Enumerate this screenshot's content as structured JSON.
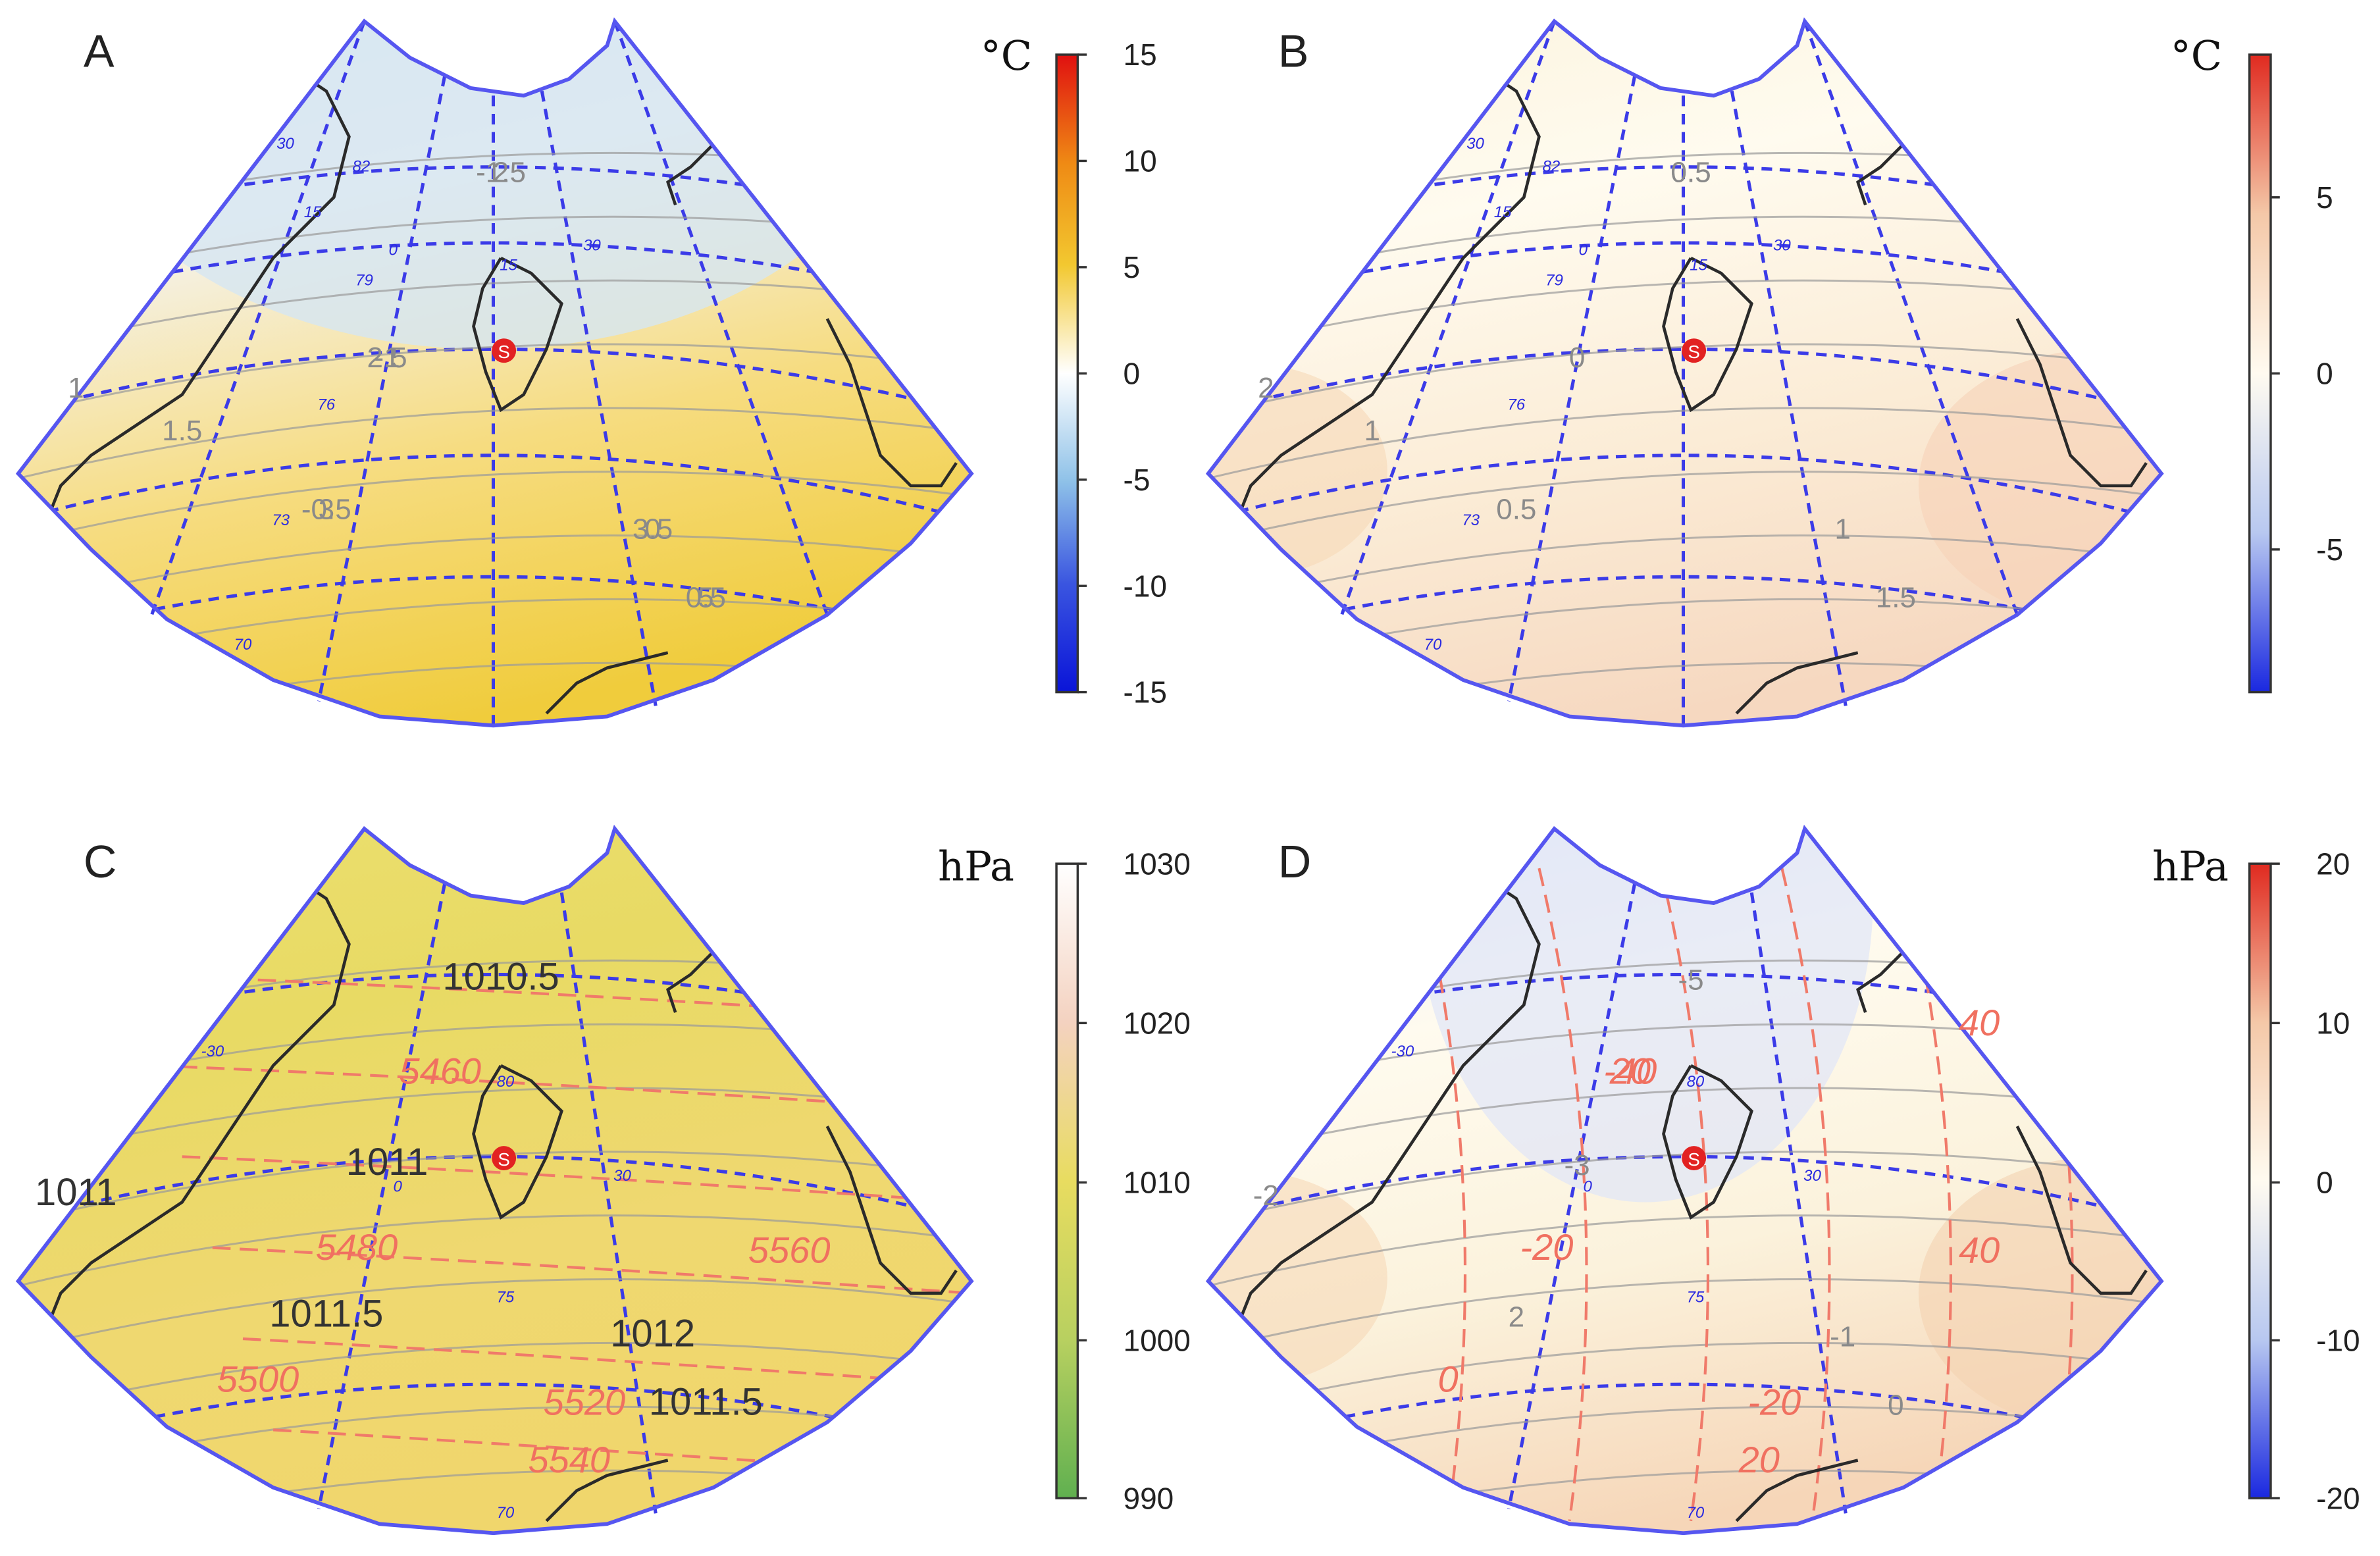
{
  "figure": {
    "panels": [
      {
        "id": "A",
        "label": "A",
        "unit": "°C",
        "colorbar": {
          "ticks": [
            "15",
            "10",
            "5",
            "0",
            "-5",
            "-10",
            "-15"
          ],
          "stops": [
            "#e01010",
            "#ef8a14",
            "#f2c830",
            "#ffffff",
            "#8ec1e8",
            "#3a55e0",
            "#0a14d8"
          ]
        },
        "field_colors": [
          "#d8e8f3",
          "#f5f3ee",
          "#f6dc80",
          "#f0cc3c"
        ],
        "contours": [
          "-1.5",
          "-1",
          "-0.5",
          "0",
          "0.5",
          "1",
          "1.5",
          "2",
          "2.5",
          "3",
          "3.5",
          "5"
        ],
        "grid_labels": [
          "30",
          "82",
          "15",
          "0",
          "15",
          "30",
          "79",
          "76",
          "73",
          "70"
        ]
      },
      {
        "id": "B",
        "label": "B",
        "unit": "°C",
        "colorbar": {
          "ticks": [
            "5",
            "0",
            "-5"
          ],
          "stops": [
            "#e02a20",
            "#f4c8a8",
            "#fffbf0",
            "#b8c8f0",
            "#1a28e0"
          ]
        },
        "field_colors": [
          "#fbf3dc",
          "#fffbef",
          "#fbecd6",
          "#f6d8c0"
        ],
        "contours": [
          "0.5",
          "0",
          "0.5",
          "1",
          "1.5",
          "2",
          "1",
          "0.5"
        ],
        "grid_labels": [
          "30",
          "82",
          "15",
          "0",
          "15",
          "30",
          "79",
          "76",
          "73",
          "70"
        ]
      },
      {
        "id": "C",
        "label": "C",
        "unit": "hPa",
        "colorbar": {
          "ticks": [
            "1030",
            "1020",
            "1010",
            "1000",
            "990"
          ],
          "stops": [
            "#ffffff",
            "#f4d2c0",
            "#e8dc60",
            "#b8d060",
            "#60b050"
          ]
        },
        "field_colors": [
          "#ece070",
          "#e8da64",
          "#efd870",
          "#f0d66c"
        ],
        "contours_dark": [
          "1010.5",
          "1011",
          "1011.5",
          "1012",
          "1011.5",
          "1011"
        ],
        "contours_red": [
          "5460",
          "5480",
          "5500",
          "5520",
          "5540",
          "5560"
        ],
        "grid_labels": [
          "-30",
          "80",
          "0",
          "30",
          "75",
          "70"
        ]
      },
      {
        "id": "D",
        "label": "D",
        "unit": "hPa",
        "colorbar": {
          "ticks": [
            "20",
            "10",
            "0",
            "-10",
            "-20"
          ],
          "stops": [
            "#e02a20",
            "#f4c8a8",
            "#fffbf0",
            "#b8c8f0",
            "#1a28e0"
          ]
        },
        "field_colors": [
          "#e3eaf8",
          "#fffbef",
          "#fbf2dc",
          "#f6d6b8"
        ],
        "contours_grey": [
          "-5",
          "-3",
          "2",
          "-1",
          "0",
          "-2"
        ],
        "contours_red": [
          "-40",
          "-20",
          "0",
          "-20",
          "20",
          "40",
          "40",
          "20"
        ],
        "grid_labels": [
          "-30",
          "80",
          "0",
          "30",
          "75",
          "70"
        ]
      }
    ]
  }
}
